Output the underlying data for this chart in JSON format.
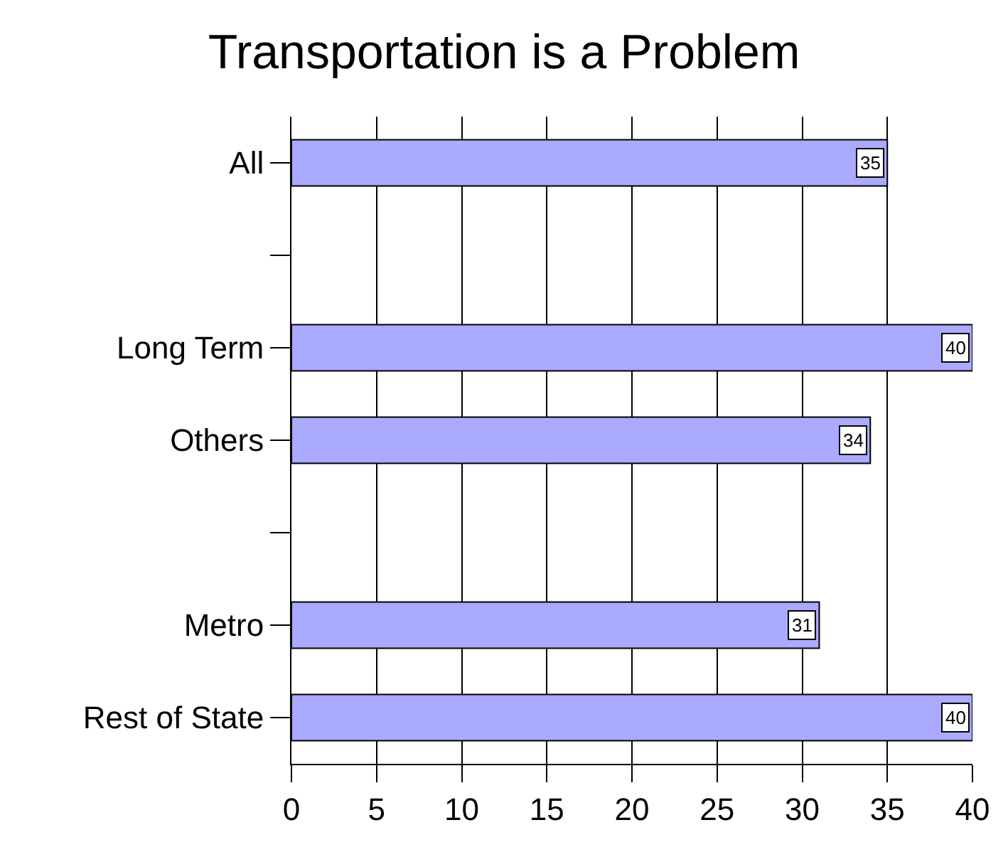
{
  "chart_data": {
    "type": "bar",
    "orientation": "horizontal",
    "title": "Transportation is a Problem",
    "categories": [
      "All",
      null,
      "Long Term",
      "Others",
      null,
      "Metro",
      "Rest of State"
    ],
    "values": [
      35,
      null,
      40,
      34,
      null,
      31,
      40
    ],
    "color": "#aaaaff",
    "xlim": [
      0,
      40
    ],
    "xticks": [
      0,
      5,
      10,
      15,
      20,
      25,
      30,
      35,
      40
    ],
    "grid": "x",
    "data_labels": true
  }
}
